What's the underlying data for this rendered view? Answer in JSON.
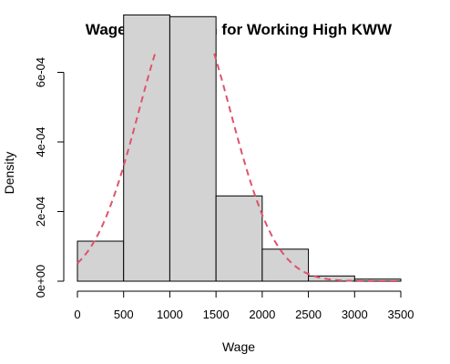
{
  "chart_data": {
    "type": "bar",
    "title": "Wage Distribution for Working High KWW",
    "xlabel": "Wage",
    "ylabel": "Density",
    "xlim": [
      0,
      3500
    ],
    "ylim": [
      0,
      0.00078
    ],
    "bins": [
      {
        "start": 0,
        "end": 500,
        "density": 0.000115
      },
      {
        "start": 500,
        "end": 1000,
        "density": 0.000765
      },
      {
        "start": 1000,
        "end": 1500,
        "density": 0.00076
      },
      {
        "start": 1500,
        "end": 2000,
        "density": 0.000245
      },
      {
        "start": 2000,
        "end": 2500,
        "density": 9.2e-05
      },
      {
        "start": 2500,
        "end": 3000,
        "density": 1.5e-05
      },
      {
        "start": 3000,
        "end": 3500,
        "density": 6e-06
      }
    ],
    "x_ticks": [
      {
        "value": 0,
        "label": "0"
      },
      {
        "value": 500,
        "label": "500"
      },
      {
        "value": 1000,
        "label": "1000"
      },
      {
        "value": 1500,
        "label": "1500"
      },
      {
        "value": 2000,
        "label": "2000"
      },
      {
        "value": 2500,
        "label": "2500"
      },
      {
        "value": 3000,
        "label": "3000"
      },
      {
        "value": 3500,
        "label": "3500"
      }
    ],
    "y_ticks": [
      {
        "value": 0,
        "label": "0e+00"
      },
      {
        "value": 0.0002,
        "label": "2e-04"
      },
      {
        "value": 0.0004,
        "label": "4e-04"
      },
      {
        "value": 0.0006,
        "label": "6e-04"
      }
    ],
    "density_curve": {
      "type": "normal",
      "mean": 1160,
      "sd": 495,
      "color": "#DF536B"
    },
    "bar_fill": "#D3D3D3",
    "bar_stroke": "#000000",
    "grid": false,
    "legend": "none"
  }
}
